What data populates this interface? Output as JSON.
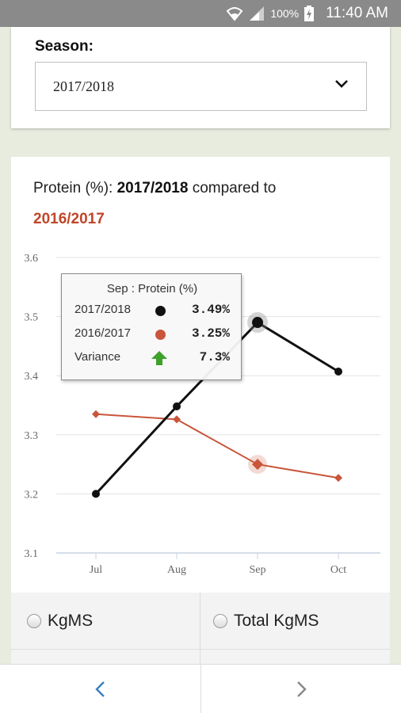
{
  "status_bar": {
    "battery": "100%",
    "time": "11:40 AM"
  },
  "season": {
    "label": "Season:",
    "selected": "2017/2018"
  },
  "chart_header": {
    "prefix": "Protein (%): ",
    "current": "2017/2018",
    "middle": " compared to",
    "compare": "2016/2017"
  },
  "colors": {
    "current": "#111111",
    "compare": "#c9553a",
    "variance_arrow": "#3da12b",
    "background": "#e8ecdf"
  },
  "chart_data": {
    "type": "line",
    "categories": [
      "Jul",
      "Aug",
      "Sep",
      "Oct"
    ],
    "ylim": [
      3.1,
      3.6
    ],
    "yticks": [
      "3.1",
      "3.2",
      "3.3",
      "3.4",
      "3.5",
      "3.6"
    ],
    "grid": true,
    "series": [
      {
        "name": "2017/2018",
        "values": [
          3.2,
          3.348,
          3.49,
          3.407
        ],
        "color": "#111111",
        "marker": "circle"
      },
      {
        "name": "2016/2017",
        "values": [
          3.335,
          3.326,
          3.25,
          3.227
        ],
        "color": "#c9553a",
        "marker": "diamond"
      }
    ],
    "highlight_category": "Sep"
  },
  "tooltip": {
    "title": "Sep : Protein (%)",
    "rows": [
      {
        "label": "2017/2018",
        "value": "3.49%"
      },
      {
        "label": "2016/2017",
        "value": "3.25%"
      },
      {
        "label": "Variance",
        "value": "7.3%"
      }
    ]
  },
  "options": [
    {
      "label": "KgMS"
    },
    {
      "label": "Total KgMS"
    }
  ],
  "nav": {
    "prev_icon": "chevron-left-icon",
    "next_icon": "chevron-right-icon"
  }
}
